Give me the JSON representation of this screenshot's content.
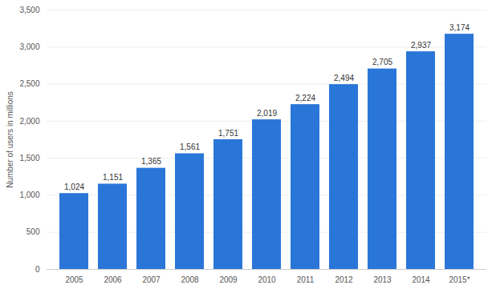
{
  "chart_data": {
    "type": "bar",
    "y_label": "Number of users in millions",
    "categories": [
      "2005",
      "2006",
      "2007",
      "2008",
      "2009",
      "2010",
      "2011",
      "2012",
      "2013",
      "2014",
      "2015*"
    ],
    "values": [
      1024,
      1151,
      1365,
      1561,
      1751,
      2019,
      2224,
      2494,
      2705,
      2937,
      3174
    ],
    "value_labels": [
      "1,024",
      "1,151",
      "1,365",
      "1,561",
      "1,751",
      "2,019",
      "2,224",
      "2,494",
      "2,705",
      "2,937",
      "3,174"
    ],
    "color": "#2a76d8",
    "ylim": [
      0,
      3500
    ],
    "yticks": [
      0,
      500,
      {
        "value": 1000,
        "label": "1,000"
      },
      {
        "value": 1500,
        "label": "1,500"
      },
      {
        "value": 2000,
        "label": "2,000"
      },
      {
        "value": 2500,
        "label": "2,500"
      },
      {
        "value": 3000,
        "label": "3,000"
      },
      {
        "value": 3500,
        "label": "3,500"
      }
    ],
    "grid": true,
    "data_labels": true
  }
}
